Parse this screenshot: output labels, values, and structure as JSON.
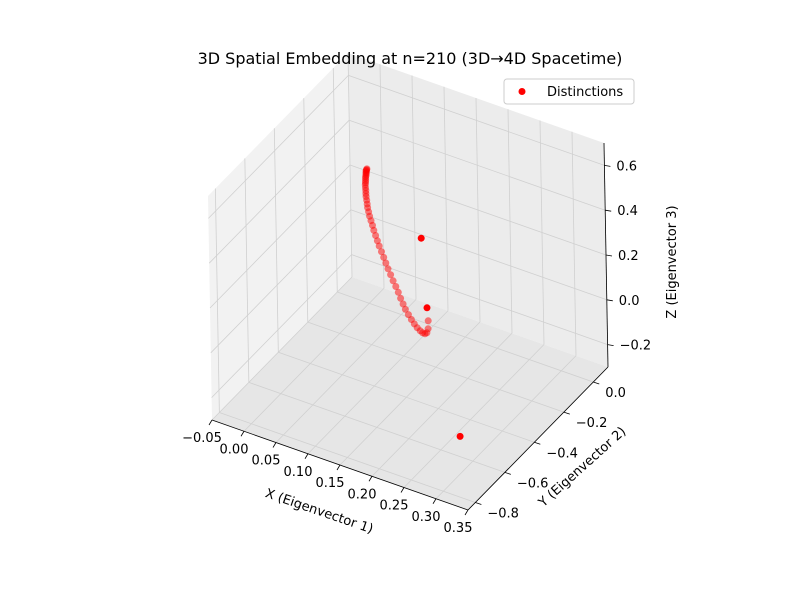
{
  "chart_data": {
    "type": "scatter",
    "title": "3D Spatial Embedding at n=210 (3D→4D Spacetime)",
    "xlabel": "X (Eigenvector 1)",
    "ylabel": "Y (Eigenvector 2)",
    "zlabel": "Z (Eigenvector 3)",
    "xlim": [
      -0.05,
      0.35
    ],
    "ylim": [
      -0.85,
      0.1
    ],
    "zlim": [
      -0.3,
      0.7
    ],
    "xticks": [
      "−0.05",
      "0.00",
      "0.05",
      "0.10",
      "0.15",
      "0.20",
      "0.25",
      "0.30",
      "0.35"
    ],
    "yticks": [
      "−0.8",
      "−0.6",
      "−0.4",
      "−0.2",
      "0.0"
    ],
    "zticks": [
      "−0.2",
      "0.0",
      "0.2",
      "0.4",
      "0.6"
    ],
    "grid": true,
    "legend_position": "upper right",
    "series": [
      {
        "name": "Distinctions",
        "color": "#ff0000",
        "x": [
          0.0,
          0.0,
          0.0,
          0.0,
          0.001,
          0.001,
          0.002,
          0.002,
          0.003,
          0.004,
          0.005,
          0.006,
          0.008,
          0.01,
          0.012,
          0.014,
          0.017,
          0.02,
          0.023,
          0.027,
          0.031,
          0.036,
          0.041,
          0.046,
          0.052,
          0.058,
          0.064,
          0.071,
          0.078,
          0.085,
          0.092,
          0.1,
          0.108,
          0.116,
          0.124,
          0.132,
          0.14,
          0.148,
          0.157,
          0.166,
          0.175,
          0.184,
          0.193,
          0.201,
          0.209,
          0.216,
          0.222,
          0.226,
          0.228,
          0.225,
          0.335
        ],
        "y": [
          0.0,
          -0.002,
          -0.004,
          -0.006,
          -0.008,
          -0.011,
          -0.014,
          -0.018,
          -0.022,
          -0.027,
          -0.032,
          -0.038,
          -0.045,
          -0.052,
          -0.06,
          -0.068,
          -0.077,
          -0.087,
          -0.097,
          -0.108,
          -0.119,
          -0.131,
          -0.143,
          -0.156,
          -0.17,
          -0.184,
          -0.198,
          -0.213,
          -0.229,
          -0.245,
          -0.261,
          -0.278,
          -0.296,
          -0.313,
          -0.331,
          -0.35,
          -0.368,
          -0.387,
          -0.406,
          -0.425,
          -0.444,
          -0.463,
          -0.482,
          -0.5,
          -0.518,
          -0.535,
          -0.552,
          -0.567,
          -0.582,
          -0.6,
          -0.83
        ],
        "z": [
          0.3,
          0.298,
          0.296,
          0.293,
          0.29,
          0.287,
          0.283,
          0.279,
          0.275,
          0.27,
          0.265,
          0.26,
          0.254,
          0.248,
          0.242,
          0.236,
          0.229,
          0.222,
          0.215,
          0.208,
          0.2,
          0.193,
          0.185,
          0.177,
          0.169,
          0.161,
          0.153,
          0.145,
          0.137,
          0.13,
          0.122,
          0.115,
          0.108,
          0.102,
          0.096,
          0.09,
          0.085,
          0.082,
          0.08,
          0.08,
          0.082,
          0.087,
          0.095,
          0.106,
          0.122,
          0.145,
          0.18,
          0.23,
          0.3,
          0.62,
          0.0
        ]
      }
    ]
  }
}
